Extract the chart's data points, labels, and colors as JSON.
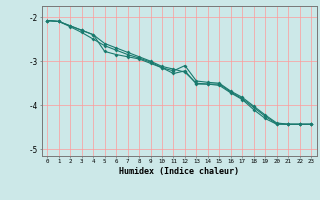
{
  "xlabel": "Humidex (Indice chaleur)",
  "background_color": "#cce8e8",
  "grid_color": "#ff9999",
  "line_color": "#1a7a6e",
  "xlim": [
    -0.5,
    23.5
  ],
  "ylim": [
    -5.15,
    -1.75
  ],
  "yticks": [
    -5,
    -4,
    -3,
    -2
  ],
  "xticks": [
    0,
    1,
    2,
    3,
    4,
    5,
    6,
    7,
    8,
    9,
    10,
    11,
    12,
    13,
    14,
    15,
    16,
    17,
    18,
    19,
    20,
    21,
    22,
    23
  ],
  "line1_x": [
    0,
    1,
    2,
    3,
    4,
    5,
    6,
    7,
    8,
    9,
    10,
    11,
    12,
    13,
    14,
    15,
    16,
    17,
    18,
    19,
    20,
    21,
    22,
    23
  ],
  "line1_y": [
    -2.08,
    -2.1,
    -2.2,
    -2.3,
    -2.4,
    -2.6,
    -2.7,
    -2.8,
    -2.9,
    -3.0,
    -3.12,
    -3.18,
    -3.25,
    -3.5,
    -3.52,
    -3.55,
    -3.72,
    -3.87,
    -4.1,
    -4.3,
    -4.43,
    -4.43,
    -4.43,
    -4.43
  ],
  "line2_x": [
    0,
    1,
    2,
    3,
    4,
    5,
    6,
    7,
    8,
    9,
    10,
    11,
    12,
    13,
    14,
    15,
    16,
    17,
    18,
    19,
    20,
    21,
    22,
    23
  ],
  "line2_y": [
    -2.08,
    -2.1,
    -2.2,
    -2.3,
    -2.4,
    -2.78,
    -2.85,
    -2.9,
    -2.95,
    -3.05,
    -3.15,
    -3.22,
    -3.1,
    -3.45,
    -3.48,
    -3.5,
    -3.68,
    -3.82,
    -4.02,
    -4.22,
    -4.4,
    -4.43,
    -4.43,
    -4.43
  ],
  "line3_x": [
    0,
    1,
    2,
    3,
    4,
    5,
    6,
    7,
    8,
    9,
    10,
    11,
    12,
    13,
    14,
    15,
    16,
    17,
    18,
    19,
    20,
    21,
    22,
    23
  ],
  "line3_y": [
    -2.08,
    -2.1,
    -2.22,
    -2.35,
    -2.5,
    -2.65,
    -2.75,
    -2.85,
    -2.93,
    -3.02,
    -3.15,
    -3.28,
    -3.22,
    -3.52,
    -3.52,
    -3.52,
    -3.7,
    -3.85,
    -4.05,
    -4.25,
    -4.42,
    -4.43,
    -4.43,
    -4.43
  ]
}
